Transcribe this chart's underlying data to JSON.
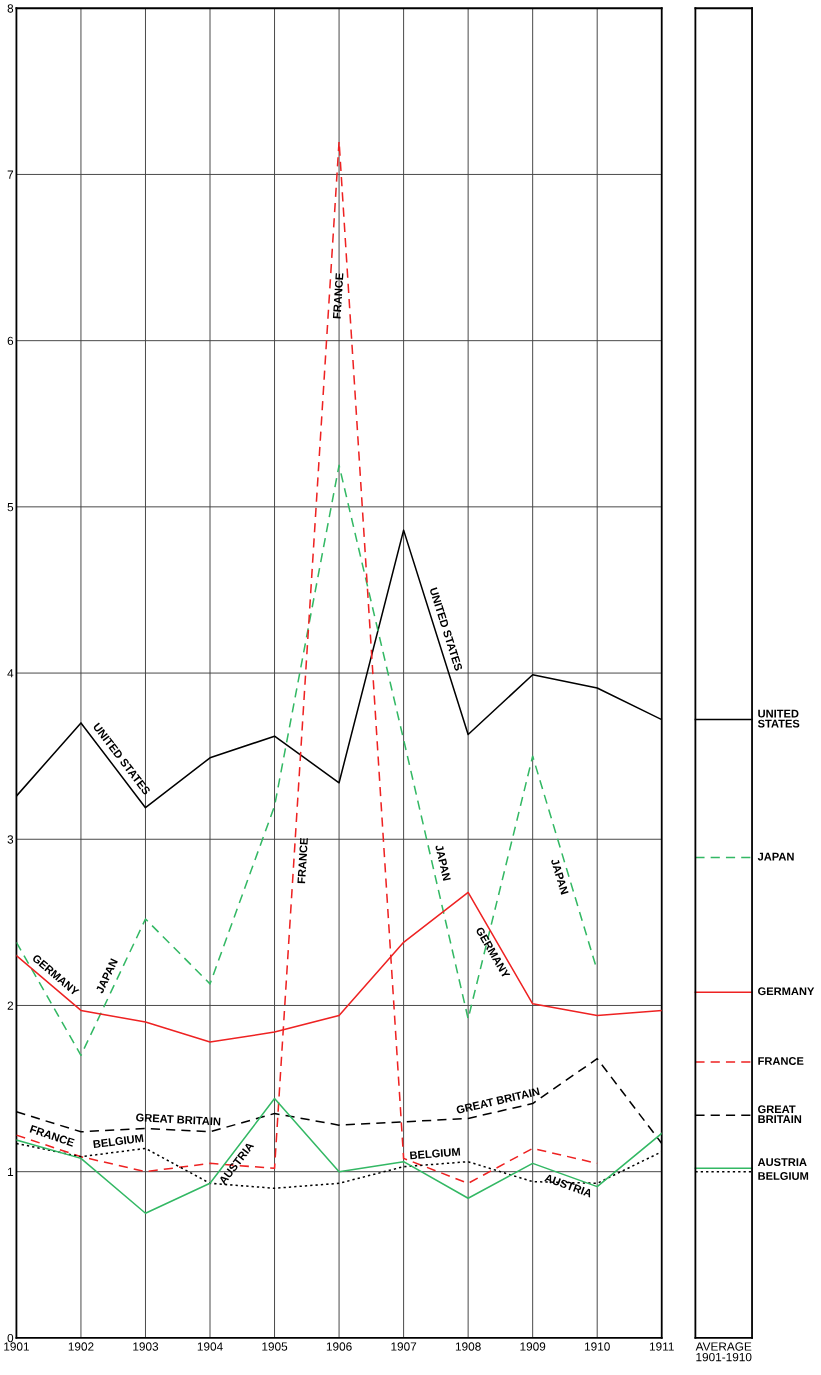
{
  "chart_data": [
    {
      "type": "line",
      "x": [
        1901,
        1902,
        1903,
        1904,
        1905,
        1906,
        1907,
        1908,
        1909,
        1910,
        1911
      ],
      "xlim": [
        1901,
        1911
      ],
      "xticks": [
        1901,
        1902,
        1903,
        1904,
        1905,
        1906,
        1907,
        1908,
        1909,
        1910,
        1911
      ],
      "ylim": [
        0,
        8
      ],
      "yticks": [
        0,
        1,
        2,
        3,
        4,
        5,
        6,
        7,
        8
      ],
      "grid": true,
      "legend": false,
      "series": [
        {
          "name": "UNITED STATES",
          "color": "#000000",
          "line_style": "solid",
          "values": [
            3.26,
            3.7,
            3.19,
            3.49,
            3.62,
            3.34,
            4.86,
            3.63,
            3.99,
            3.91,
            3.72
          ]
        },
        {
          "name": "JAPAN",
          "color": "#33b864",
          "line_style": "dashed",
          "values": [
            2.38,
            1.7,
            2.52,
            2.13,
            3.2,
            5.25,
            3.6,
            1.92,
            3.5,
            2.21,
            null
          ]
        },
        {
          "name": "GERMANY",
          "color": "#ee2222",
          "line_style": "solid",
          "values": [
            2.3,
            1.97,
            1.9,
            1.78,
            1.84,
            1.94,
            2.38,
            2.68,
            2.01,
            1.94,
            1.97
          ]
        },
        {
          "name": "FRANCE",
          "color": "#ee2222",
          "line_style": "dashed",
          "values": [
            1.22,
            1.09,
            1.0,
            1.05,
            1.02,
            7.2,
            1.08,
            0.93,
            1.14,
            1.05,
            null
          ]
        },
        {
          "name": "GREAT BRITAIN",
          "color": "#000000",
          "line_style": "dashed",
          "values": [
            1.36,
            1.24,
            1.26,
            1.24,
            1.35,
            1.28,
            1.3,
            1.32,
            1.41,
            1.68,
            1.17
          ]
        },
        {
          "name": "BELGIUM",
          "color": "#000000",
          "line_style": "dotted",
          "values": [
            1.17,
            1.09,
            1.14,
            0.93,
            0.9,
            0.93,
            1.03,
            1.06,
            0.94,
            0.93,
            1.12
          ]
        },
        {
          "name": "AUSTRIA",
          "color": "#33b864",
          "line_style": "solid",
          "values": [
            1.19,
            1.08,
            0.75,
            0.93,
            1.44,
            1.0,
            1.06,
            0.84,
            1.05,
            0.91,
            1.23
          ]
        }
      ]
    },
    {
      "type": "line",
      "categories": [
        "AVERAGE\n1901-1910"
      ],
      "ylim": [
        0,
        8
      ],
      "tick_labels": "x",
      "grid": false,
      "ref_lines": [
        {
          "axis": "y",
          "value": 3.72,
          "label": "UNITED\nSTATES",
          "color": "#000000",
          "line_style": "solid"
        },
        {
          "axis": "y",
          "value": 2.89,
          "label": "JAPAN",
          "color": "#33b864",
          "line_style": "dashed"
        },
        {
          "axis": "y",
          "value": 2.08,
          "label": "GERMANY",
          "color": "#ee2222",
          "line_style": "solid"
        },
        {
          "axis": "y",
          "value": 1.66,
          "label": "FRANCE",
          "color": "#ee2222",
          "line_style": "dashed"
        },
        {
          "axis": "y",
          "value": 1.34,
          "label": "GREAT\nBRITAIN",
          "color": "#000000",
          "line_style": "dashed"
        },
        {
          "axis": "y",
          "value": 1.02,
          "label": "AUSTRIA",
          "color": "#33b864",
          "line_style": "solid"
        },
        {
          "axis": "y",
          "value": 1.0,
          "label": "BELGIUM",
          "color": "#000000",
          "line_style": "dotted"
        }
      ]
    }
  ]
}
